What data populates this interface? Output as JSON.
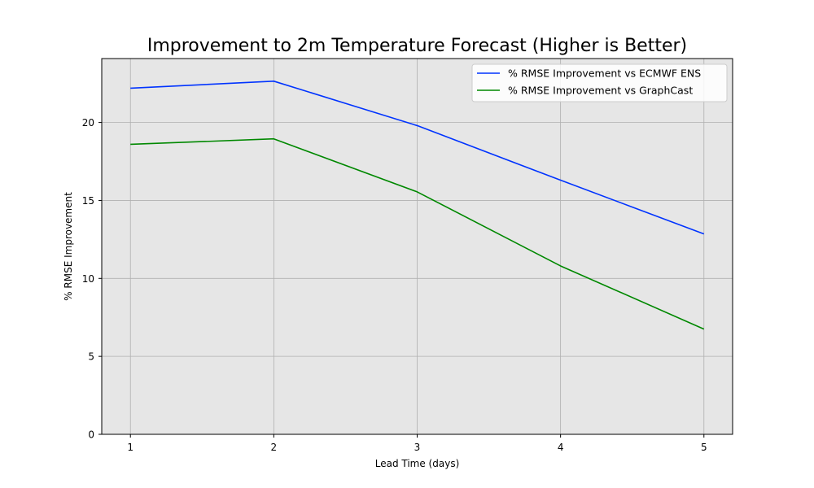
{
  "chart_data": {
    "type": "line",
    "title": "Improvement to 2m Temperature Forecast (Higher is Better)",
    "xlabel": "Lead Time (days)",
    "ylabel": "% RMSE Improvement",
    "x": [
      1,
      2,
      3,
      4,
      5
    ],
    "xticks": [
      "1",
      "2",
      "3",
      "4",
      "5"
    ],
    "xlim": [
      0.8,
      5.2
    ],
    "ylim": [
      0,
      24.1
    ],
    "yticks": [
      "0",
      "5",
      "10",
      "15",
      "20"
    ],
    "grid": true,
    "legend_position": "top-right",
    "background": "#e6e6e6",
    "series": [
      {
        "name": "% RMSE Improvement vs ECMWF ENS",
        "color": "#0033ff",
        "values": [
          22.2,
          22.65,
          19.8,
          16.3,
          12.85
        ]
      },
      {
        "name": "% RMSE Improvement vs GraphCast",
        "color": "#008800",
        "values": [
          18.6,
          18.95,
          15.55,
          10.8,
          6.75
        ]
      }
    ]
  }
}
